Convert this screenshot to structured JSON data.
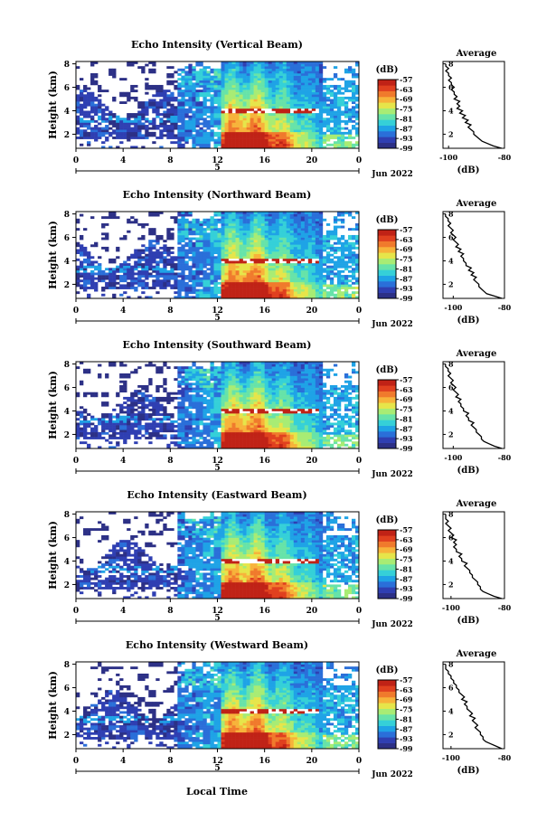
{
  "figure": {
    "xlabel": "Local Time",
    "date_label": "Jun 2022",
    "day_label": "5",
    "cbar_unit": "(dB)",
    "avg_title": "Average",
    "avg_xlabel": "(dB)",
    "ylabel": "Height (km)"
  },
  "colors": {
    "background": "#ffffff",
    "scale": [
      "#2c3086",
      "#2f3fb2",
      "#2a6fd9",
      "#1fa3e6",
      "#35d0d8",
      "#67e3a9",
      "#a8ec74",
      "#e6e54a",
      "#f7b33a",
      "#f07a2c",
      "#e0401f",
      "#c02216"
    ]
  },
  "chart_data": [
    {
      "type": "heatmap",
      "title": "Echo Intensity (Vertical Beam)",
      "ylabel": "Height (km)",
      "x_ticks": [
        "0",
        "4",
        "8",
        "12",
        "16",
        "20",
        "0"
      ],
      "xlim": [
        0,
        24
      ],
      "y_ticks": [
        "2",
        "4",
        "6",
        "8"
      ],
      "ylim": [
        0.8,
        8.2
      ],
      "colorbar": {
        "unit": "(dB)",
        "ticks": [
          "-57",
          "-63",
          "-69",
          "-75",
          "-81",
          "-87",
          "-93",
          "-99"
        ],
        "range": [
          -99,
          -57
        ]
      },
      "average": {
        "title": "Average",
        "xlabel": "(dB)",
        "x_ticks": [
          "-100",
          "-80"
        ],
        "y_ticks": [
          "2",
          "4",
          "6",
          "8"
        ],
        "xlim": [
          -102,
          -80
        ],
        "ylim": [
          0.8,
          8.2
        ],
        "height": [
          0.8,
          1.0,
          1.2,
          1.4,
          1.6,
          1.8,
          2.0,
          2.2,
          2.4,
          2.6,
          2.8,
          3.0,
          3.2,
          3.4,
          3.6,
          3.8,
          4.0,
          4.2,
          4.4,
          4.6,
          4.8,
          5.0,
          5.2,
          5.4,
          5.6,
          5.8,
          6.0,
          6.2,
          6.4,
          6.6,
          6.8,
          7.0,
          7.2,
          7.4,
          7.6,
          7.8,
          8.0
        ],
        "values": [
          -81,
          -84,
          -86,
          -88,
          -89,
          -90,
          -91,
          -91,
          -92,
          -93,
          -92,
          -94,
          -93,
          -95,
          -94,
          -96,
          -95,
          -97,
          -96,
          -97,
          -96,
          -98,
          -97,
          -98,
          -98,
          -99,
          -98,
          -99,
          -99,
          -100,
          -99,
          -100,
          -100,
          -101,
          -100,
          -101,
          -101
        ]
      }
    },
    {
      "type": "heatmap",
      "title": "Echo Intensity (Northward Beam)",
      "ylabel": "Height (km)",
      "x_ticks": [
        "0",
        "4",
        "8",
        "12",
        "16",
        "20",
        "0"
      ],
      "xlim": [
        0,
        24
      ],
      "y_ticks": [
        "2",
        "4",
        "6",
        "8"
      ],
      "ylim": [
        0.8,
        8.2
      ],
      "colorbar": {
        "unit": "(dB)",
        "ticks": [
          "-57",
          "-63",
          "-69",
          "-75",
          "-81",
          "-87",
          "-93",
          "-99"
        ],
        "range": [
          -99,
          -57
        ]
      },
      "average": {
        "title": "Average",
        "xlabel": "(dB)",
        "x_ticks": [
          "-100",
          "-80"
        ],
        "y_ticks": [
          "2",
          "4",
          "6",
          "8"
        ],
        "xlim": [
          -104,
          -80
        ],
        "ylim": [
          0.8,
          8.2
        ],
        "height": [
          0.8,
          1.0,
          1.2,
          1.4,
          1.6,
          1.8,
          2.0,
          2.2,
          2.4,
          2.6,
          2.8,
          3.0,
          3.2,
          3.4,
          3.6,
          3.8,
          4.0,
          4.2,
          4.4,
          4.6,
          4.8,
          5.0,
          5.2,
          5.4,
          5.6,
          5.8,
          6.0,
          6.2,
          6.4,
          6.6,
          6.8,
          7.0,
          7.2,
          7.4,
          7.6,
          7.8,
          8.0
        ],
        "values": [
          -81,
          -84,
          -87,
          -88,
          -89,
          -90,
          -90,
          -91,
          -92,
          -91,
          -93,
          -92,
          -94,
          -93,
          -95,
          -95,
          -96,
          -96,
          -97,
          -96,
          -98,
          -97,
          -99,
          -98,
          -99,
          -100,
          -99,
          -100,
          -101,
          -100,
          -101,
          -102,
          -101,
          -102,
          -102,
          -103,
          -103
        ]
      }
    },
    {
      "type": "heatmap",
      "title": "Echo Intensity (Southward Beam)",
      "ylabel": "Height (km)",
      "x_ticks": [
        "0",
        "4",
        "8",
        "12",
        "16",
        "20",
        "0"
      ],
      "xlim": [
        0,
        24
      ],
      "y_ticks": [
        "2",
        "4",
        "6",
        "8"
      ],
      "ylim": [
        0.8,
        8.2
      ],
      "colorbar": {
        "unit": "(dB)",
        "ticks": [
          "-57",
          "-63",
          "-69",
          "-75",
          "-81",
          "-87",
          "-93",
          "-99"
        ],
        "range": [
          -99,
          -57
        ]
      },
      "average": {
        "title": "Average",
        "xlabel": "(dB)",
        "x_ticks": [
          "-100",
          "-80"
        ],
        "y_ticks": [
          "2",
          "4",
          "6",
          "8"
        ],
        "xlim": [
          -104,
          -80
        ],
        "ylim": [
          0.8,
          8.2
        ],
        "height": [
          0.8,
          1.0,
          1.2,
          1.4,
          1.6,
          1.8,
          2.0,
          2.2,
          2.4,
          2.6,
          2.8,
          3.0,
          3.2,
          3.4,
          3.6,
          3.8,
          4.0,
          4.2,
          4.4,
          4.6,
          4.8,
          5.0,
          5.2,
          5.4,
          5.6,
          5.8,
          6.0,
          6.2,
          6.4,
          6.6,
          6.8,
          7.0,
          7.2,
          7.4,
          7.6,
          7.8,
          8.0
        ],
        "values": [
          -81,
          -84,
          -86,
          -88,
          -89,
          -89,
          -90,
          -91,
          -91,
          -92,
          -93,
          -92,
          -94,
          -94,
          -95,
          -94,
          -96,
          -96,
          -97,
          -97,
          -98,
          -97,
          -99,
          -98,
          -99,
          -100,
          -99,
          -100,
          -101,
          -100,
          -101,
          -102,
          -101,
          -102,
          -102,
          -103,
          -103
        ]
      }
    },
    {
      "type": "heatmap",
      "title": "Echo Intensity (Eastward Beam)",
      "ylabel": "Height (km)",
      "x_ticks": [
        "0",
        "4",
        "8",
        "12",
        "16",
        "20",
        "0"
      ],
      "xlim": [
        0,
        24
      ],
      "y_ticks": [
        "2",
        "4",
        "6",
        "8"
      ],
      "ylim": [
        0.8,
        8.2
      ],
      "colorbar": {
        "unit": "(dB)",
        "ticks": [
          "-57",
          "-63",
          "-69",
          "-75",
          "-81",
          "-87",
          "-93",
          "-99"
        ],
        "range": [
          -99,
          -57
        ]
      },
      "average": {
        "title": "Average",
        "xlabel": "(dB)",
        "x_ticks": [
          "-100",
          "-80"
        ],
        "y_ticks": [
          "2",
          "4",
          "6",
          "8"
        ],
        "xlim": [
          -103,
          -80
        ],
        "ylim": [
          0.8,
          8.2
        ],
        "height": [
          0.8,
          1.0,
          1.2,
          1.4,
          1.6,
          1.8,
          2.0,
          2.2,
          2.4,
          2.6,
          2.8,
          3.0,
          3.2,
          3.4,
          3.6,
          3.8,
          4.0,
          4.2,
          4.4,
          4.6,
          4.8,
          5.0,
          5.2,
          5.4,
          5.6,
          5.8,
          6.0,
          6.2,
          6.4,
          6.6,
          6.8,
          7.0,
          7.2,
          7.4,
          7.6,
          7.8,
          8.0
        ],
        "values": [
          -81,
          -84,
          -86,
          -88,
          -89,
          -89,
          -90,
          -90,
          -91,
          -92,
          -92,
          -93,
          -93,
          -94,
          -95,
          -94,
          -96,
          -96,
          -97,
          -96,
          -98,
          -98,
          -99,
          -98,
          -99,
          -98,
          -100,
          -99,
          -100,
          -101,
          -100,
          -101,
          -102,
          -101,
          -102,
          -102,
          -102
        ]
      }
    },
    {
      "type": "heatmap",
      "title": "Echo Intensity (Westward Beam)",
      "ylabel": "Height (km)",
      "x_ticks": [
        "0",
        "4",
        "8",
        "12",
        "16",
        "20",
        "0"
      ],
      "xlim": [
        0,
        24
      ],
      "y_ticks": [
        "2",
        "4",
        "6",
        "8"
      ],
      "ylim": [
        0.8,
        8.2
      ],
      "colorbar": {
        "unit": "(dB)",
        "ticks": [
          "-57",
          "-63",
          "-69",
          "-75",
          "-81",
          "-87",
          "-93",
          "-99"
        ],
        "range": [
          -99,
          -57
        ]
      },
      "average": {
        "title": "Average",
        "xlabel": "(dB)",
        "x_ticks": [
          "-100",
          "-80"
        ],
        "y_ticks": [
          "2",
          "4",
          "6",
          "8"
        ],
        "xlim": [
          -103,
          -80
        ],
        "ylim": [
          0.8,
          8.2
        ],
        "height": [
          0.8,
          1.0,
          1.2,
          1.4,
          1.6,
          1.8,
          2.0,
          2.2,
          2.4,
          2.6,
          2.8,
          3.0,
          3.2,
          3.4,
          3.6,
          3.8,
          4.0,
          4.2,
          4.4,
          4.6,
          4.8,
          5.0,
          5.2,
          5.4,
          5.6,
          5.8,
          6.0,
          6.2,
          6.4,
          6.6,
          6.8,
          7.0,
          7.2,
          7.4,
          7.6,
          7.8,
          8.0
        ],
        "values": [
          -81,
          -83,
          -85,
          -87,
          -88,
          -88,
          -89,
          -89,
          -90,
          -91,
          -90,
          -91,
          -92,
          -91,
          -93,
          -92,
          -93,
          -94,
          -94,
          -95,
          -94,
          -96,
          -95,
          -96,
          -97,
          -97,
          -98,
          -98,
          -99,
          -99,
          -100,
          -100,
          -101,
          -101,
          -102,
          -102,
          -102
        ]
      }
    }
  ]
}
